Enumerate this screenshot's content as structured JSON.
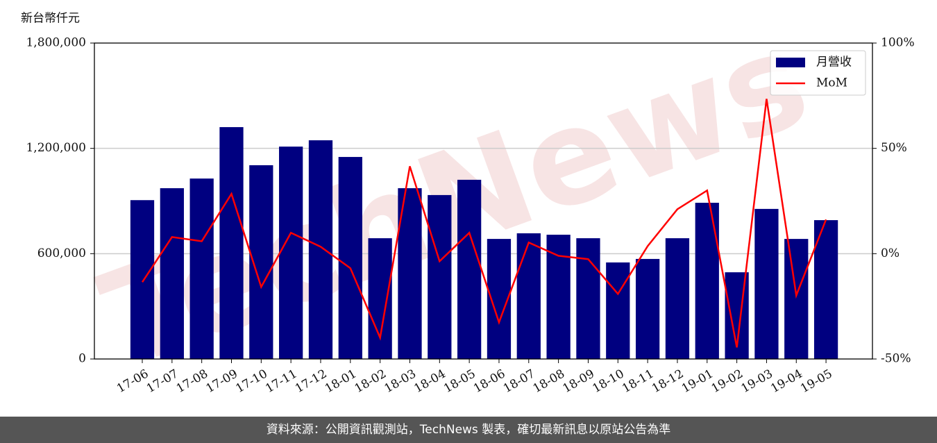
{
  "chart_data": {
    "type": "bar-line",
    "y_label": "新台幣仟元",
    "watermark": "TechNews",
    "categories": [
      "17-06",
      "17-07",
      "17-08",
      "17-09",
      "17-10",
      "17-11",
      "17-12",
      "18-01",
      "18-02",
      "18-03",
      "18-04",
      "18-05",
      "18-06",
      "18-07",
      "18-08",
      "18-09",
      "18-10",
      "18-11",
      "18-12",
      "19-01",
      "19-02",
      "19-03",
      "19-04",
      "19-05"
    ],
    "series": [
      {
        "name": "月營收",
        "type": "bar",
        "color": "#000080",
        "axis": "y",
        "values": [
          905000,
          973000,
          1028000,
          1321000,
          1104000,
          1210000,
          1246000,
          1151000,
          688000,
          973000,
          934000,
          1021000,
          684000,
          716000,
          708000,
          688000,
          550000,
          570000,
          688000,
          890000,
          494000,
          855000,
          684000,
          791000
        ]
      },
      {
        "name": "MoM",
        "type": "line",
        "color": "#ff0000",
        "axis": "y2",
        "values": [
          -13.5,
          7.9,
          5.9,
          28.4,
          -15.8,
          9.9,
          3.3,
          -6.9,
          -39.9,
          41.5,
          -3.6,
          9.9,
          -32.6,
          5.3,
          -1,
          -2.6,
          -19.1,
          3.6,
          21.1,
          30,
          -44.5,
          73.5,
          -19.8,
          16.2
        ]
      }
    ],
    "ylim": [
      0,
      1800000
    ],
    "yticks": [
      0,
      {
        "value": 600000,
        "label": "600,000"
      },
      {
        "value": 1200000,
        "label": "1,200,000"
      },
      {
        "value": 1800000,
        "label": "1,800,000"
      }
    ],
    "y2lim": [
      -50,
      100
    ],
    "y2ticks": [
      {
        "value": -50,
        "label": "-50%"
      },
      {
        "value": 0,
        "label": "0%"
      },
      {
        "value": 50,
        "label": "50%"
      },
      {
        "value": 100,
        "label": "100%"
      }
    ],
    "grid": true,
    "legend": "upper right",
    "source": "資料來源：公開資訊觀測站，TechNews 製表，確切最新訊息以原站公告為準"
  }
}
